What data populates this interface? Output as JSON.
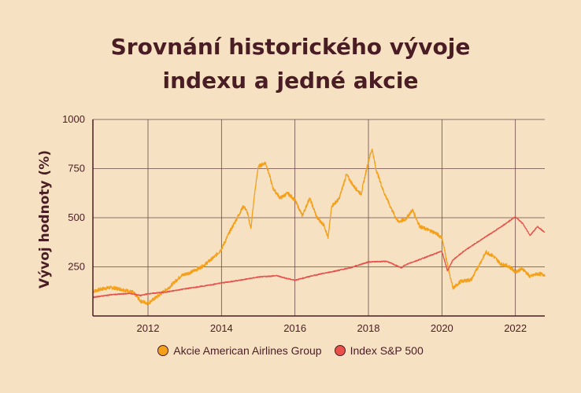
{
  "chart_data": {
    "type": "line",
    "title_line1": "Srovnání historického vývoje",
    "title_line2": "indexu a jedné akcie",
    "ylabel": "Vývoj hodnoty (%)",
    "xlabel": "",
    "xlim": [
      2010.5,
      2022.8
    ],
    "ylim": [
      0,
      1000
    ],
    "yticks": [
      250,
      500,
      750,
      1000
    ],
    "xticks": [
      2012,
      2014,
      2016,
      2018,
      2020,
      2022
    ],
    "grid": true,
    "legend_position": "bottom-center",
    "series": [
      {
        "name": "Akcie American Airlines Group",
        "color": "#f5a01a",
        "points": [
          [
            2010.5,
            125
          ],
          [
            2010.8,
            140
          ],
          [
            2011.0,
            145
          ],
          [
            2011.3,
            135
          ],
          [
            2011.6,
            120
          ],
          [
            2011.8,
            75
          ],
          [
            2012.0,
            65
          ],
          [
            2012.3,
            105
          ],
          [
            2012.6,
            150
          ],
          [
            2012.9,
            205
          ],
          [
            2013.2,
            225
          ],
          [
            2013.5,
            255
          ],
          [
            2013.8,
            300
          ],
          [
            2014.0,
            340
          ],
          [
            2014.2,
            420
          ],
          [
            2014.4,
            490
          ],
          [
            2014.6,
            560
          ],
          [
            2014.7,
            530
          ],
          [
            2014.8,
            445
          ],
          [
            2014.9,
            620
          ],
          [
            2015.0,
            760
          ],
          [
            2015.2,
            780
          ],
          [
            2015.3,
            720
          ],
          [
            2015.4,
            650
          ],
          [
            2015.6,
            600
          ],
          [
            2015.8,
            625
          ],
          [
            2016.0,
            590
          ],
          [
            2016.2,
            510
          ],
          [
            2016.4,
            600
          ],
          [
            2016.6,
            500
          ],
          [
            2016.8,
            460
          ],
          [
            2016.9,
            395
          ],
          [
            2017.0,
            560
          ],
          [
            2017.2,
            595
          ],
          [
            2017.4,
            720
          ],
          [
            2017.6,
            660
          ],
          [
            2017.8,
            620
          ],
          [
            2018.0,
            790
          ],
          [
            2018.1,
            850
          ],
          [
            2018.2,
            750
          ],
          [
            2018.4,
            640
          ],
          [
            2018.6,
            555
          ],
          [
            2018.8,
            480
          ],
          [
            2019.0,
            490
          ],
          [
            2019.2,
            540
          ],
          [
            2019.4,
            455
          ],
          [
            2019.6,
            440
          ],
          [
            2019.8,
            425
          ],
          [
            2020.0,
            400
          ],
          [
            2020.1,
            310
          ],
          [
            2020.2,
            220
          ],
          [
            2020.3,
            140
          ],
          [
            2020.5,
            175
          ],
          [
            2020.8,
            185
          ],
          [
            2021.0,
            255
          ],
          [
            2021.2,
            325
          ],
          [
            2021.4,
            305
          ],
          [
            2021.6,
            265
          ],
          [
            2021.8,
            255
          ],
          [
            2022.0,
            225
          ],
          [
            2022.2,
            240
          ],
          [
            2022.4,
            200
          ],
          [
            2022.6,
            215
          ],
          [
            2022.8,
            210
          ]
        ]
      },
      {
        "name": "Index S&P 500",
        "color": "#e8504a",
        "points": [
          [
            2010.5,
            95
          ],
          [
            2011.0,
            108
          ],
          [
            2011.5,
            115
          ],
          [
            2011.8,
            104
          ],
          [
            2012.0,
            113
          ],
          [
            2012.5,
            122
          ],
          [
            2013.0,
            138
          ],
          [
            2013.5,
            152
          ],
          [
            2014.0,
            168
          ],
          [
            2014.5,
            182
          ],
          [
            2015.0,
            198
          ],
          [
            2015.5,
            205
          ],
          [
            2015.8,
            190
          ],
          [
            2016.0,
            182
          ],
          [
            2016.5,
            206
          ],
          [
            2017.0,
            225
          ],
          [
            2017.5,
            245
          ],
          [
            2018.0,
            275
          ],
          [
            2018.5,
            278
          ],
          [
            2018.9,
            245
          ],
          [
            2019.0,
            260
          ],
          [
            2019.5,
            295
          ],
          [
            2020.0,
            330
          ],
          [
            2020.15,
            230
          ],
          [
            2020.3,
            285
          ],
          [
            2020.6,
            330
          ],
          [
            2021.0,
            380
          ],
          [
            2021.5,
            440
          ],
          [
            2022.0,
            505
          ],
          [
            2022.2,
            470
          ],
          [
            2022.4,
            410
          ],
          [
            2022.6,
            455
          ],
          [
            2022.8,
            425
          ]
        ]
      }
    ]
  }
}
